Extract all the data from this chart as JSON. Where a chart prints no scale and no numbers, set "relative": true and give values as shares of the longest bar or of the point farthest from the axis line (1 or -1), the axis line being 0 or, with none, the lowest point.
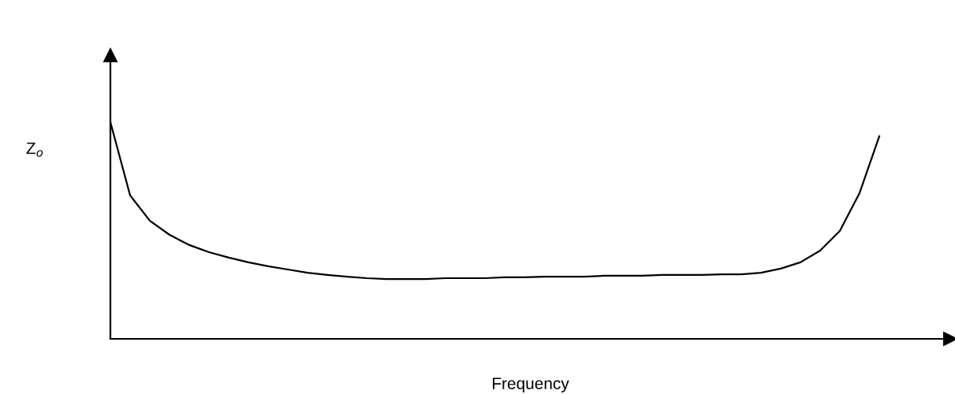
{
  "chart_data": {
    "type": "line",
    "relative": true,
    "xlabel": "Frequency",
    "ylabel": "Z$_{o}$",
    "tick_labels": false,
    "grid": false,
    "legend": false,
    "marker": "none",
    "line_style": "solid",
    "categories": [
      null,
      null,
      null,
      null,
      null,
      null,
      null,
      null,
      null,
      null,
      null,
      null,
      null,
      null,
      null,
      null,
      null,
      null,
      null,
      null,
      null,
      null,
      null,
      null,
      null,
      null,
      null,
      null,
      null,
      null,
      null,
      null,
      null,
      null,
      null,
      null,
      null,
      null,
      null,
      null
    ],
    "series": [
      {
        "color": "#000000",
        "values": [
          1,
          0.662,
          0.545,
          0.48,
          0.433,
          0.4,
          0.375,
          0.353,
          0.335,
          0.32,
          0.305,
          0.295,
          0.287,
          0.28,
          0.276,
          0.276,
          0.276,
          0.28,
          0.28,
          0.28,
          0.284,
          0.284,
          0.287,
          0.287,
          0.287,
          0.291,
          0.291,
          0.291,
          0.295,
          0.295,
          0.295,
          0.298,
          0.298,
          0.305,
          0.324,
          0.353,
          0.407,
          0.498,
          0.673,
          0.935
        ]
      }
    ]
  }
}
